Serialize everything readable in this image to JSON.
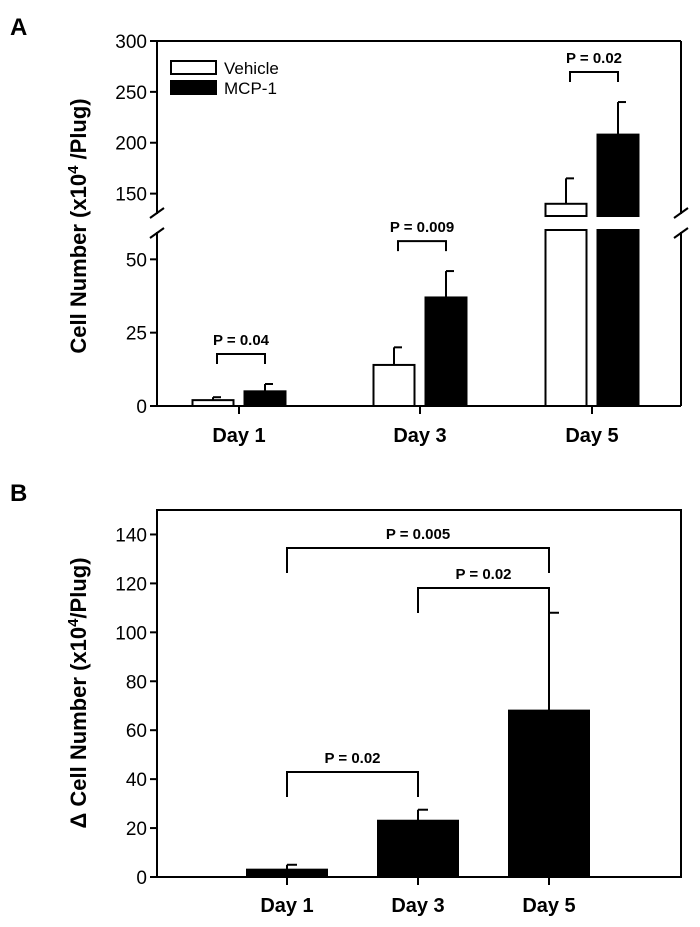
{
  "panels": [
    {
      "label": "A",
      "chart_data": {
        "type": "bar",
        "ylabel": "Cell Number (x10",
        "ylabel_sup": "4",
        "ylabel_end": " /Plug)",
        "categories": [
          "Day 1",
          "Day 3",
          "Day 5"
        ],
        "broken_axis": true,
        "ylim_lower": [
          0,
          60
        ],
        "ylim_upper": [
          128,
          300
        ],
        "yticks_lower": [
          0,
          25,
          50
        ],
        "yticks_upper": [
          150,
          200,
          250,
          300
        ],
        "legend_position": "top-left",
        "series": [
          {
            "name": "Vehicle",
            "color": "#ffffff",
            "values": [
              2,
              14,
              140
            ],
            "errors": [
              1,
              6,
              25
            ]
          },
          {
            "name": "MCP-1",
            "color": "#000000",
            "values": [
              5,
              37,
              208
            ],
            "errors": [
              2.5,
              9,
              32
            ]
          }
        ],
        "annotations": [
          {
            "text": "P = 0.04",
            "category": 0
          },
          {
            "text": "P = 0.009",
            "category": 1
          },
          {
            "text": "P = 0.02",
            "category": 2
          }
        ]
      }
    },
    {
      "label": "B",
      "chart_data": {
        "type": "bar",
        "ylabel": "Δ Cell Number (x10",
        "ylabel_sup": "4",
        "ylabel_end": "/Plug)",
        "categories": [
          "Day 1",
          "Day 3",
          "Day 5"
        ],
        "ylim": [
          0,
          150
        ],
        "yticks": [
          0,
          20,
          40,
          60,
          80,
          100,
          120,
          140
        ],
        "series": [
          {
            "color": "#000000",
            "values": [
              3,
              23,
              68
            ],
            "errors": [
              2,
              4.5,
              40
            ]
          }
        ],
        "annotations": [
          {
            "text": "P = 0.02",
            "from": 0,
            "to": 1
          },
          {
            "text": "P = 0.02",
            "from": 1,
            "to": 2
          },
          {
            "text": "P = 0.005",
            "from": 0,
            "to": 2
          }
        ]
      }
    }
  ]
}
